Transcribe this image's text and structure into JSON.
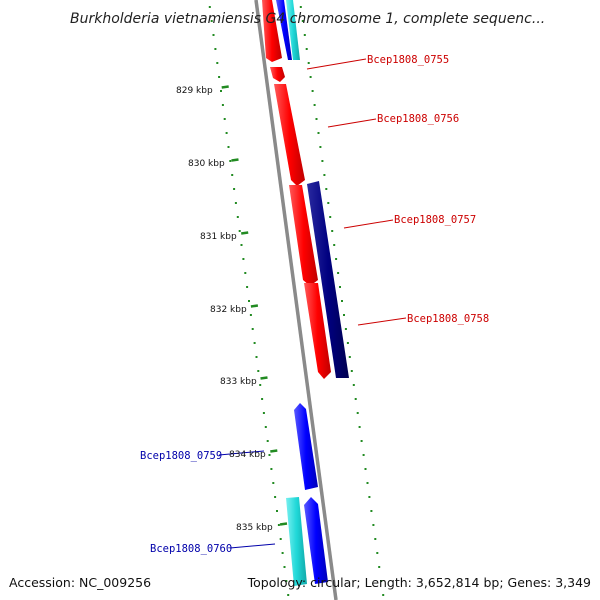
{
  "map": {
    "title": "Burkholderia vietnamiensis G4 chromosome 1, complete sequenc...",
    "ticks": [
      "829 kbp",
      "830 kbp",
      "831 kbp",
      "832 kbp",
      "833 kbp",
      "834 kbp",
      "835 kbp"
    ],
    "genes": {
      "g0755": "Bcep1808_0755",
      "g0756": "Bcep1808_0756",
      "g0757": "Bcep1808_0757",
      "g0758": "Bcep1808_0758",
      "g0759": "Bcep1808_0759",
      "g0760": "Bcep1808_0760"
    },
    "colors": {
      "forward": "#ff0000",
      "reverse_dark": "#000080",
      "reverse": "#0000ff",
      "cyan": "#20d8d8",
      "label_forward": "#cc0000",
      "label_reverse": "#0000aa",
      "tick_green": "#228b22",
      "backbone": "#8a8a8a"
    }
  },
  "footer": {
    "accession": "Accession: NC_009256",
    "summary": "Topology: circular; Length: 3,652,814 bp; Genes: 3,349"
  }
}
